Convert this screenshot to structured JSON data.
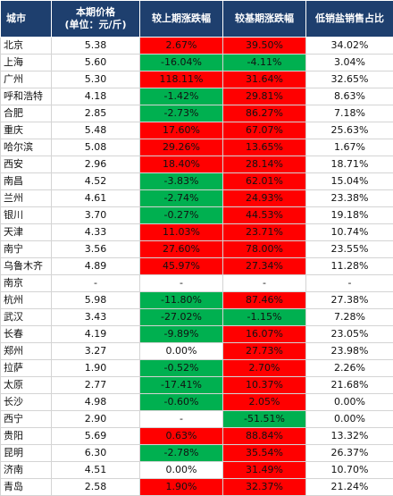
{
  "headers": {
    "city": "城市",
    "price": "本期价格",
    "price_unit": "(单位：元/斤)",
    "mom": "较上期涨跌幅",
    "yoy": "较基期涨跌幅",
    "low_share": "低销盐销售占比"
  },
  "colors": {
    "header_bg": "#1e3f6e",
    "increase": "#ff0000",
    "decrease": "#00b050",
    "neutral": "#ffffff"
  },
  "rows": [
    {
      "city": "北京",
      "price": "5.38",
      "mom": "2.67%",
      "mom_color": "red",
      "yoy": "39.50%",
      "yoy_color": "red",
      "share": "34.02%"
    },
    {
      "city": "上海",
      "price": "5.60",
      "mom": "-16.04%",
      "mom_color": "green",
      "yoy": "-4.11%",
      "yoy_color": "green",
      "share": "3.04%"
    },
    {
      "city": "广州",
      "price": "5.30",
      "mom": "118.11%",
      "mom_color": "red",
      "yoy": "31.64%",
      "yoy_color": "red",
      "share": "32.65%"
    },
    {
      "city": "呼和浩特",
      "price": "4.18",
      "mom": "-1.42%",
      "mom_color": "green",
      "yoy": "29.81%",
      "yoy_color": "red",
      "share": "8.63%"
    },
    {
      "city": "合肥",
      "price": "2.85",
      "mom": "-2.73%",
      "mom_color": "green",
      "yoy": "86.27%",
      "yoy_color": "red",
      "share": "7.18%"
    },
    {
      "city": "重庆",
      "price": "5.48",
      "mom": "17.60%",
      "mom_color": "red",
      "yoy": "67.07%",
      "yoy_color": "red",
      "share": "25.63%"
    },
    {
      "city": "哈尔滨",
      "price": "5.08",
      "mom": "29.26%",
      "mom_color": "red",
      "yoy": "13.65%",
      "yoy_color": "red",
      "share": "1.67%"
    },
    {
      "city": "西安",
      "price": "2.96",
      "mom": "18.40%",
      "mom_color": "red",
      "yoy": "28.14%",
      "yoy_color": "red",
      "share": "18.71%"
    },
    {
      "city": "南昌",
      "price": "4.52",
      "mom": "-3.83%",
      "mom_color": "green",
      "yoy": "62.01%",
      "yoy_color": "red",
      "share": "15.04%"
    },
    {
      "city": "兰州",
      "price": "4.61",
      "mom": "-2.74%",
      "mom_color": "green",
      "yoy": "24.93%",
      "yoy_color": "red",
      "share": "23.38%"
    },
    {
      "city": "银川",
      "price": "3.70",
      "mom": "-0.27%",
      "mom_color": "green",
      "yoy": "44.53%",
      "yoy_color": "red",
      "share": "19.18%"
    },
    {
      "city": "天津",
      "price": "4.33",
      "mom": "11.03%",
      "mom_color": "red",
      "yoy": "23.71%",
      "yoy_color": "red",
      "share": "10.74%"
    },
    {
      "city": "南宁",
      "price": "3.56",
      "mom": "27.60%",
      "mom_color": "red",
      "yoy": "78.00%",
      "yoy_color": "red",
      "share": "23.55%"
    },
    {
      "city": "乌鲁木齐",
      "price": "4.89",
      "mom": "45.97%",
      "mom_color": "red",
      "yoy": "27.34%",
      "yoy_color": "red",
      "share": "11.28%"
    },
    {
      "city": "南京",
      "price": "-",
      "mom": "-",
      "mom_color": "none",
      "yoy": "-",
      "yoy_color": "none",
      "share": "-"
    },
    {
      "city": "杭州",
      "price": "5.98",
      "mom": "-11.80%",
      "mom_color": "green",
      "yoy": "87.46%",
      "yoy_color": "red",
      "share": "27.38%"
    },
    {
      "city": "武汉",
      "price": "3.43",
      "mom": "-27.02%",
      "mom_color": "green",
      "yoy": "-1.15%",
      "yoy_color": "green",
      "share": "7.28%"
    },
    {
      "city": "长春",
      "price": "4.19",
      "mom": "-9.89%",
      "mom_color": "green",
      "yoy": "16.07%",
      "yoy_color": "red",
      "share": "23.05%"
    },
    {
      "city": "郑州",
      "price": "3.27",
      "mom": "0.00%",
      "mom_color": "none",
      "yoy": "27.73%",
      "yoy_color": "red",
      "share": "23.98%"
    },
    {
      "city": "拉萨",
      "price": "1.90",
      "mom": "-0.52%",
      "mom_color": "green",
      "yoy": "2.70%",
      "yoy_color": "red",
      "share": "2.26%"
    },
    {
      "city": "太原",
      "price": "2.77",
      "mom": "-17.41%",
      "mom_color": "green",
      "yoy": "10.37%",
      "yoy_color": "red",
      "share": "21.68%"
    },
    {
      "city": "长沙",
      "price": "4.98",
      "mom": "-0.60%",
      "mom_color": "green",
      "yoy": "2.05%",
      "yoy_color": "red",
      "share": "0.00%"
    },
    {
      "city": "西宁",
      "price": "2.90",
      "mom": "-",
      "mom_color": "none",
      "yoy": "-51.51%",
      "yoy_color": "green",
      "share": "0.00%"
    },
    {
      "city": "贵阳",
      "price": "5.69",
      "mom": "0.63%",
      "mom_color": "red",
      "yoy": "88.84%",
      "yoy_color": "red",
      "share": "13.32%"
    },
    {
      "city": "昆明",
      "price": "6.30",
      "mom": "-2.78%",
      "mom_color": "green",
      "yoy": "35.54%",
      "yoy_color": "red",
      "share": "26.37%"
    },
    {
      "city": "济南",
      "price": "4.51",
      "mom": "0.00%",
      "mom_color": "none",
      "yoy": "31.49%",
      "yoy_color": "red",
      "share": "10.70%"
    },
    {
      "city": "青岛",
      "price": "2.58",
      "mom": "1.90%",
      "mom_color": "red",
      "yoy": "32.37%",
      "yoy_color": "red",
      "share": "21.24%"
    }
  ]
}
